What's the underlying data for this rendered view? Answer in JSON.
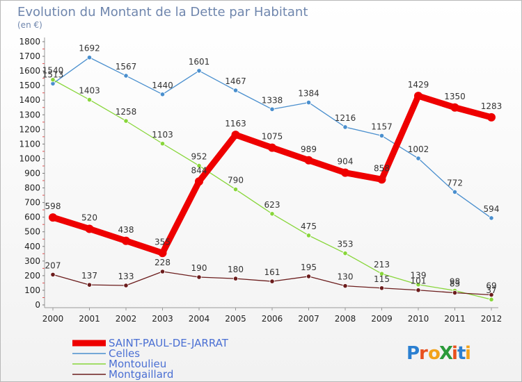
{
  "header": {
    "title": "Evolution du Montant de la Dette par Habitant",
    "unit": "(en €)"
  },
  "logo": {
    "text": "ProXiti"
  },
  "colors": {
    "SAINT-PAUL-DE-JARRAT": "#ee0000",
    "Celles": "#4a8fce",
    "Montoulieu": "#88d63a",
    "Montgaillard": "#6b1c1c"
  },
  "chart_data": {
    "type": "line",
    "title": "Evolution du Montant de la Dette par Habitant",
    "ylabel": "(en €)",
    "xlabel": "",
    "x": [
      "2000",
      "2001",
      "2002",
      "2003",
      "2004",
      "2005",
      "2006",
      "2007",
      "2008",
      "2009",
      "2010",
      "2011",
      "2012"
    ],
    "ylim": [
      0,
      1800
    ],
    "yticks": [
      0,
      100,
      200,
      300,
      400,
      500,
      600,
      700,
      800,
      900,
      1000,
      1100,
      1200,
      1300,
      1400,
      1500,
      1600,
      1700,
      1800
    ],
    "grid": false,
    "legend_position": "bottom-left",
    "series": [
      {
        "name": "SAINT-PAUL-DE-JARRAT",
        "values": [
          598,
          520,
          438,
          355,
          844,
          1163,
          1075,
          989,
          904,
          858,
          1429,
          1350,
          1283
        ]
      },
      {
        "name": "Celles",
        "values": [
          1513,
          1692,
          1567,
          1440,
          1601,
          1467,
          1338,
          1384,
          1216,
          1157,
          1002,
          772,
          594
        ]
      },
      {
        "name": "Montoulieu",
        "values": [
          1540,
          1403,
          1258,
          1103,
          952,
          790,
          623,
          475,
          353,
          213,
          139,
          98,
          37
        ]
      },
      {
        "name": "Montgaillard",
        "values": [
          207,
          137,
          133,
          228,
          190,
          180,
          161,
          195,
          130,
          115,
          101,
          83,
          69
        ]
      }
    ]
  }
}
